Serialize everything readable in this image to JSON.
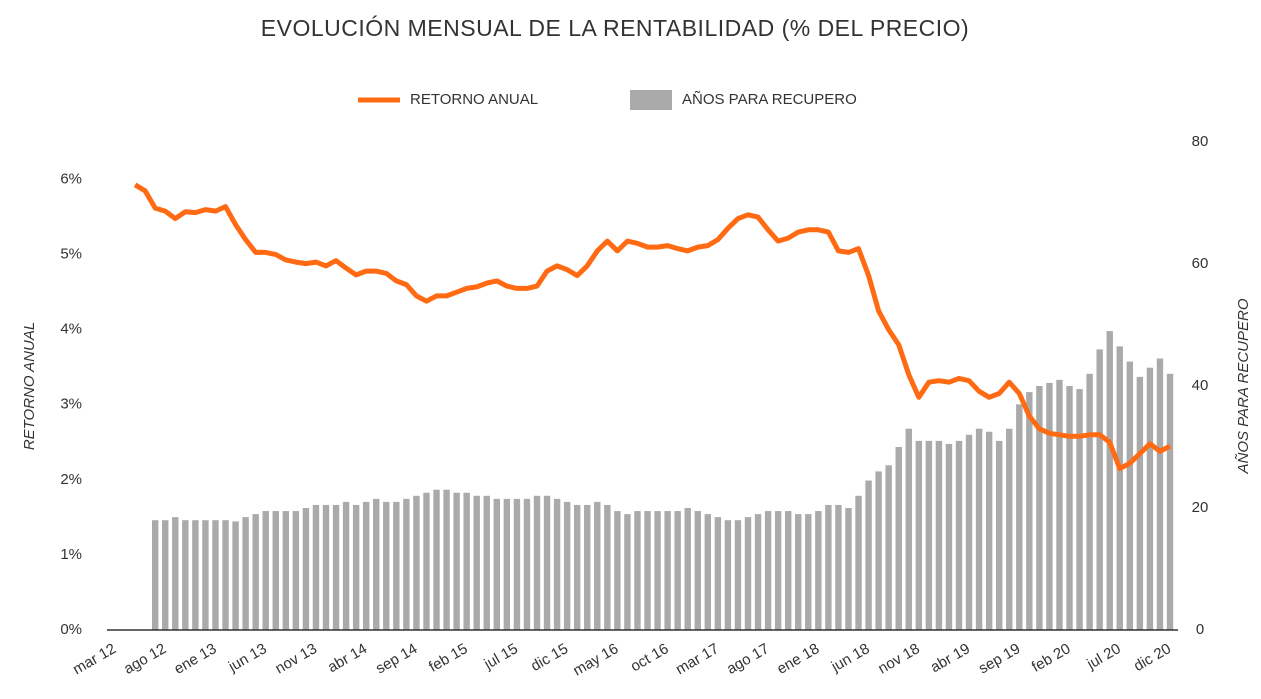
{
  "chart_data": {
    "type": "bar_line",
    "title": "EVOLUCIÓN MENSUAL DE LA RENTABILIDAD (% DEL PRECIO)",
    "y_label": "RETORNO ANUAL",
    "y2_label": "AÑOS PARA RECUPERO",
    "categories": [
      "mar 12",
      null,
      null,
      null,
      null,
      "ago 12",
      null,
      null,
      null,
      null,
      "ene 13",
      null,
      null,
      null,
      null,
      "jun 13",
      null,
      null,
      null,
      null,
      "nov 13",
      null,
      null,
      null,
      null,
      "abr 14",
      null,
      null,
      null,
      null,
      "sep 14",
      null,
      null,
      null,
      null,
      "feb 15",
      null,
      null,
      null,
      null,
      "jul 15",
      null,
      null,
      null,
      null,
      "dic 15",
      null,
      null,
      null,
      null,
      "may 16",
      null,
      null,
      null,
      null,
      "oct 16",
      null,
      null,
      null,
      null,
      "mar 17",
      null,
      null,
      null,
      null,
      "ago 17",
      null,
      null,
      null,
      null,
      "ene 18",
      null,
      null,
      null,
      null,
      "jun 18",
      null,
      null,
      null,
      null,
      "nov 18",
      null,
      null,
      null,
      null,
      "abr 19",
      null,
      null,
      null,
      null,
      "sep 19",
      null,
      null,
      null,
      null,
      "feb 20",
      null,
      null,
      null,
      null,
      "jul 20",
      null,
      null,
      null,
      null,
      "dic 20"
    ],
    "series": [
      {
        "name": "RETORNO ANUAL",
        "type": "line",
        "color": "#ff6a13",
        "values": [
          null,
          null,
          5.93,
          5.85,
          5.62,
          5.58,
          5.48,
          5.57,
          5.56,
          5.6,
          5.58,
          5.64,
          5.4,
          5.2,
          5.03,
          5.03,
          5.0,
          4.93,
          4.9,
          4.88,
          4.9,
          4.85,
          4.92,
          4.82,
          4.73,
          4.78,
          4.78,
          4.75,
          4.65,
          4.6,
          4.45,
          4.38,
          4.45,
          4.45,
          4.5,
          4.55,
          4.57,
          4.62,
          4.65,
          4.58,
          4.55,
          4.55,
          4.58,
          4.78,
          4.85,
          4.8,
          4.72,
          4.85,
          5.05,
          5.18,
          5.05,
          5.18,
          5.15,
          5.1,
          5.1,
          5.12,
          5.08,
          5.05,
          5.1,
          5.12,
          5.2,
          5.35,
          5.48,
          5.53,
          5.5,
          5.33,
          5.18,
          5.22,
          5.3,
          5.33,
          5.33,
          5.3,
          5.05,
          5.03,
          5.08,
          4.72,
          4.25,
          4.0,
          3.8,
          3.4,
          3.1,
          3.3,
          3.32,
          3.3,
          3.35,
          3.32,
          3.18,
          3.1,
          3.15,
          3.3,
          3.15,
          2.85,
          2.68,
          2.62,
          2.6,
          2.58,
          2.58,
          2.6,
          2.6,
          2.5,
          2.15,
          2.22,
          2.35,
          2.48,
          2.38,
          2.45
        ]
      },
      {
        "name": "AÑOS PARA RECUPERO",
        "type": "bar",
        "axis": "y2",
        "color": "#aaaaaa",
        "values": [
          null,
          null,
          null,
          null,
          18,
          18,
          18.5,
          18,
          18,
          18,
          18,
          18,
          17.8,
          18.5,
          19,
          19.5,
          19.5,
          19.5,
          19.5,
          20,
          20.5,
          20.5,
          20.5,
          21,
          20.5,
          21,
          21.5,
          21,
          21,
          21.5,
          22,
          22.5,
          23,
          23,
          22.5,
          22.5,
          22,
          22,
          21.5,
          21.5,
          21.5,
          21.5,
          22,
          22,
          21.5,
          21,
          20.5,
          20.5,
          21,
          20.5,
          19.5,
          19,
          19.5,
          19.5,
          19.5,
          19.5,
          19.5,
          20,
          19.5,
          19,
          18.5,
          18,
          18,
          18.5,
          19,
          19.5,
          19.5,
          19.5,
          19,
          19,
          19.5,
          20.5,
          20.5,
          20,
          22,
          24.5,
          26,
          27,
          30,
          33,
          31,
          31,
          31,
          30.5,
          31,
          32,
          33,
          32.5,
          31,
          33,
          37,
          39,
          40,
          40.5,
          41,
          40,
          39.5,
          42,
          46,
          49,
          46.5,
          44,
          41.5,
          43,
          44.5,
          42
        ]
      }
    ],
    "ylim": [
      0,
      6.5
    ],
    "yticks": [
      {
        "value": 0,
        "label": "0%"
      },
      {
        "value": 1,
        "label": "1%"
      },
      {
        "value": 2,
        "label": "2%"
      },
      {
        "value": 3,
        "label": "3%"
      },
      {
        "value": 4,
        "label": "4%"
      },
      {
        "value": 5,
        "label": "5%"
      },
      {
        "value": 6,
        "label": "6%"
      }
    ],
    "y2lim": [
      0,
      80
    ],
    "y2ticks": [
      0,
      20,
      40,
      60,
      80
    ],
    "legend": "top"
  }
}
